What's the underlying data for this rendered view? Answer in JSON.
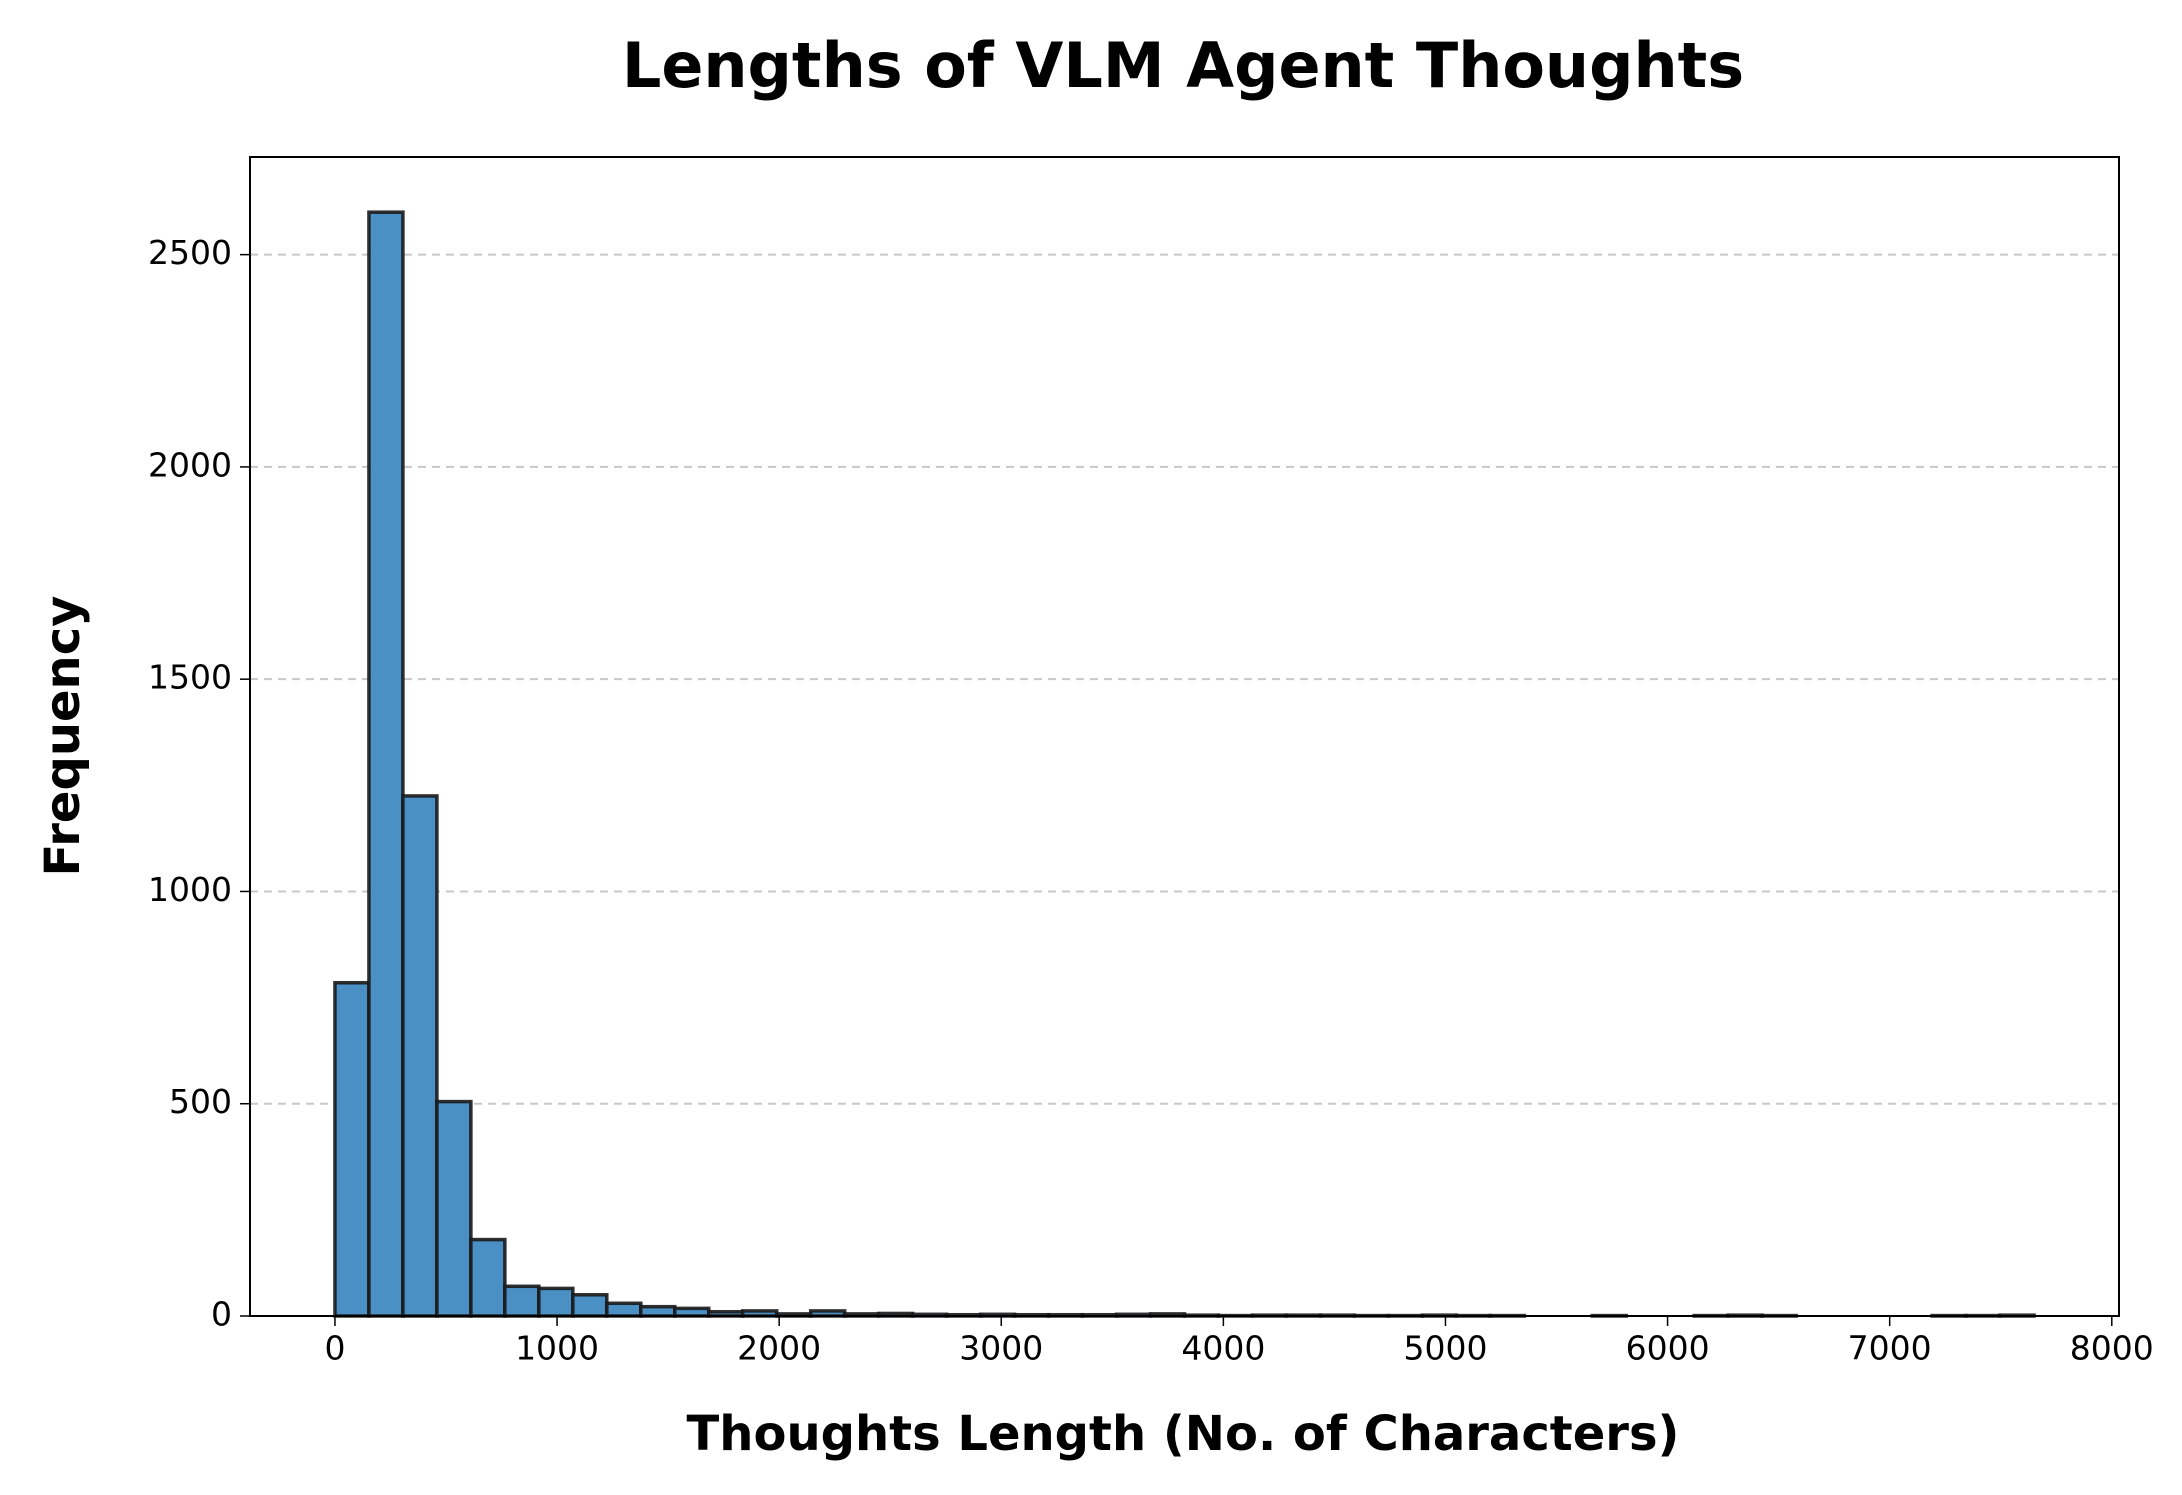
{
  "chart_data": {
    "type": "histogram",
    "title": "Lengths of VLM Agent Thoughts",
    "x_label": "Thoughts Length (No. of Characters)",
    "y_label": "Frequency",
    "bins": [
      0,
      153,
      306,
      459,
      612,
      765,
      918,
      1071,
      1224,
      1377,
      1530,
      1683,
      1836,
      1989,
      2142,
      2295,
      2448,
      2601,
      2754,
      2907,
      3060,
      3213,
      3366,
      3519,
      3672,
      3825,
      3978,
      4131,
      4284,
      4437,
      4590,
      4743,
      4896,
      5049,
      5202,
      5355,
      5508,
      5661,
      5814,
      5967,
      6120,
      6273,
      6426,
      6579,
      6732,
      6885,
      7038,
      7191,
      7344,
      7497,
      7650
    ],
    "values": [
      785,
      2600,
      1225,
      505,
      180,
      70,
      65,
      50,
      30,
      22,
      18,
      10,
      12,
      5,
      12,
      5,
      6,
      4,
      3,
      4,
      3,
      3,
      3,
      4,
      5,
      2,
      1,
      2,
      2,
      2,
      1,
      1,
      2,
      1,
      1,
      0,
      0,
      1,
      0,
      0,
      1,
      2,
      1,
      0,
      0,
      0,
      0,
      1,
      1,
      2
    ],
    "color": "#4a90c4",
    "xlim": [
      -382.5,
      8032.5
    ],
    "xticks": [
      0,
      1000,
      2000,
      3000,
      4000,
      5000,
      6000,
      7000,
      8000
    ],
    "ylim": [
      0,
      2730
    ],
    "yticks": [
      0,
      500,
      1000,
      1500,
      2000,
      2500
    ],
    "grid": "y"
  }
}
